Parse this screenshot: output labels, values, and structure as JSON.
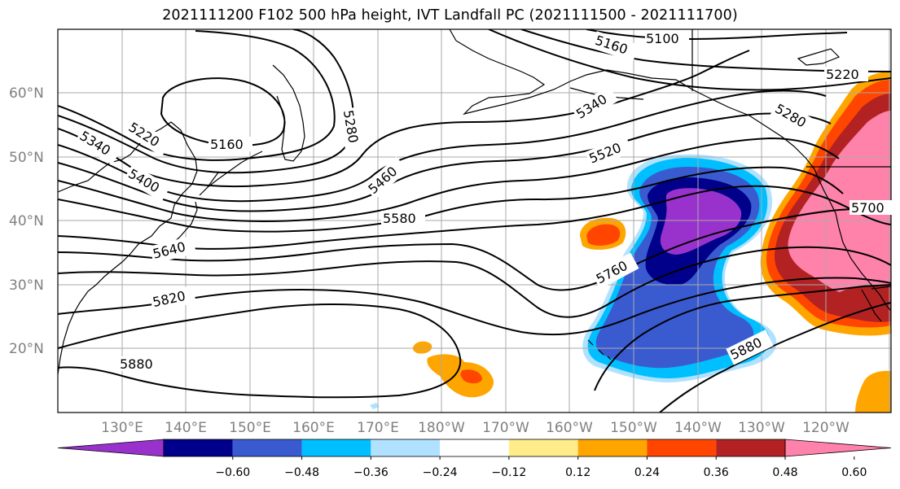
{
  "title": "2021111200 F102 500 hPa height, IVT Landfall PC (2021111500 - 2021111700)",
  "lat_ticks": [
    "20°N",
    "30°N",
    "40°N",
    "50°N",
    "60°N"
  ],
  "lon_ticks": [
    "130°E",
    "140°E",
    "150°E",
    "160°E",
    "170°E",
    "180°W",
    "170°W",
    "160°W",
    "150°W",
    "140°W",
    "130°W",
    "120°W"
  ],
  "contour_labels": [
    "5100",
    "5160",
    "5160",
    "5220",
    "5220",
    "5280",
    "5280",
    "5340",
    "5340",
    "5400",
    "5460",
    "5520",
    "5580",
    "5640",
    "5700",
    "5760",
    "5820",
    "5880",
    "5880"
  ],
  "colorbar": {
    "ticks": [
      "−0.60",
      "−0.48",
      "−0.36",
      "−0.24",
      "−0.12",
      "0.12",
      "0.24",
      "0.36",
      "0.48",
      "0.60"
    ],
    "colors": [
      "#9932cc",
      "#00008b",
      "#3a5bd0",
      "#00bfff",
      "#b0e2ff",
      "#ffffff",
      "#ffec8b",
      "#ffa500",
      "#ff4500",
      "#b22222",
      "#ff82ab"
    ]
  }
}
